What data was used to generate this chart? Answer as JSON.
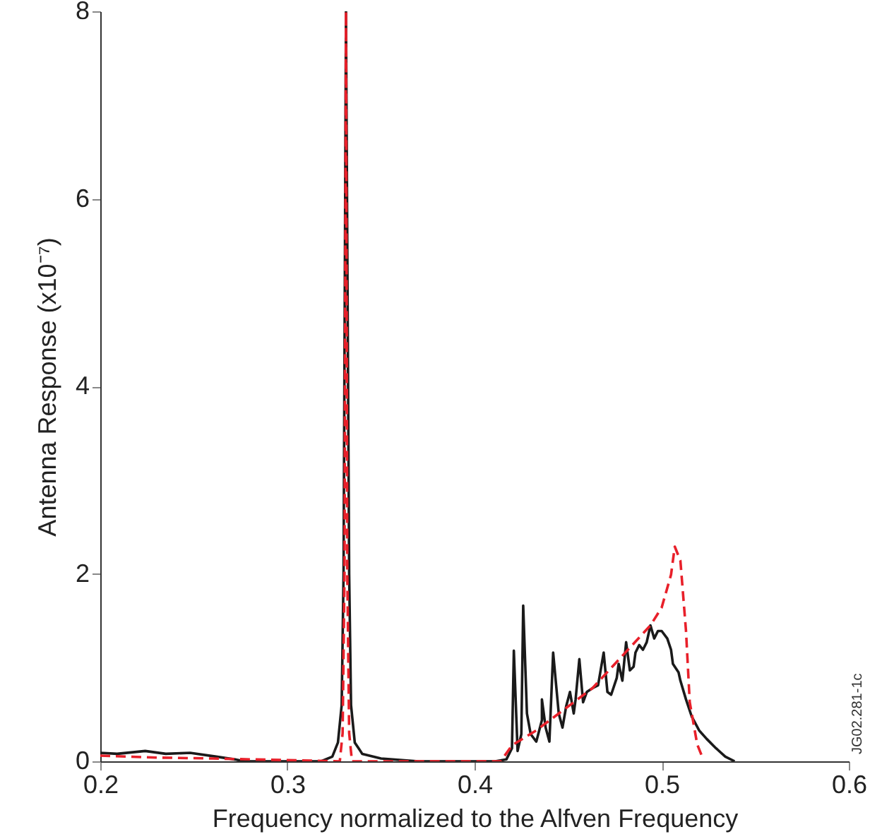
{
  "chart_data": {
    "type": "line",
    "xlabel": "Frequency normalized to the Alfven Frequency",
    "ylabel": "Antenna Response (x10⁻⁷)",
    "xlim": [
      0.2,
      0.6
    ],
    "ylim": [
      0,
      8
    ],
    "xticks": [
      0.2,
      0.3,
      0.4,
      0.5,
      0.6
    ],
    "yticks": [
      0,
      2,
      4,
      6,
      8
    ],
    "grid": false,
    "marker": "none",
    "annotations": [
      "JG02.281-1c"
    ],
    "series": [
      {
        "color": "#1a1a1a",
        "line_style": "solid",
        "x": [
          0.2,
          0.209,
          0.224,
          0.235,
          0.248,
          0.262,
          0.272,
          0.277,
          0.318,
          0.324,
          0.327,
          0.329,
          0.33,
          0.3313,
          0.333,
          0.334,
          0.336,
          0.34,
          0.35,
          0.37,
          0.411,
          0.417,
          0.42,
          0.421,
          0.423,
          0.425,
          0.426,
          0.428,
          0.43,
          0.433,
          0.436,
          0.436,
          0.438,
          0.44,
          0.442,
          0.445,
          0.447,
          0.449,
          0.451,
          0.453,
          0.454,
          0.456,
          0.458,
          0.46,
          0.463,
          0.466,
          0.469,
          0.471,
          0.473,
          0.476,
          0.477,
          0.479,
          0.481,
          0.483,
          0.485,
          0.486,
          0.488,
          0.49,
          0.492,
          0.494,
          0.496,
          0.498,
          0.5,
          0.503,
          0.505,
          0.506,
          0.509,
          0.51,
          0.513,
          0.516,
          0.52,
          0.524,
          0.529,
          0.534,
          0.539
        ],
        "values": [
          0.09,
          0.08,
          0.11,
          0.08,
          0.09,
          0.05,
          0.02,
          0,
          0,
          0.05,
          0.2,
          0.6,
          2,
          8,
          2,
          0.6,
          0.2,
          0.08,
          0.03,
          0,
          0,
          0.02,
          0.14,
          1.18,
          0.11,
          0.29,
          1.66,
          0.51,
          0.29,
          0.21,
          0.44,
          0.66,
          0.36,
          0.21,
          1.16,
          0.51,
          0.36,
          0.59,
          0.74,
          0.51,
          0.66,
          1.09,
          0.63,
          0.74,
          0.78,
          0.81,
          1.16,
          0.74,
          0.71,
          0.89,
          1.04,
          0.86,
          1.27,
          0.97,
          1.01,
          1.16,
          1.24,
          1.19,
          1.27,
          1.45,
          1.31,
          1.39,
          1.39,
          1.31,
          1.19,
          1.04,
          0.95,
          0.86,
          0.66,
          0.48,
          0.33,
          0.24,
          0.14,
          0.05,
          0
        ]
      },
      {
        "color": "#e8202a",
        "line_style": "dashed",
        "x": [
          0.2,
          0.23,
          0.26,
          0.328,
          0.3295,
          0.3305,
          0.3313,
          0.332,
          0.333,
          0.3345,
          0.414,
          0.42,
          0.433,
          0.463,
          0.494,
          0.5,
          0.505,
          0.507,
          0.51,
          0.513,
          0.515,
          0.519,
          0.522
        ],
        "values": [
          0.06,
          0.04,
          0.03,
          0,
          0.3,
          2,
          8,
          2,
          0.3,
          0,
          0,
          0.17,
          0.33,
          0.78,
          1.45,
          1.64,
          1.99,
          2.29,
          2.14,
          1.39,
          0.63,
          0.18,
          0.03
        ]
      }
    ]
  }
}
